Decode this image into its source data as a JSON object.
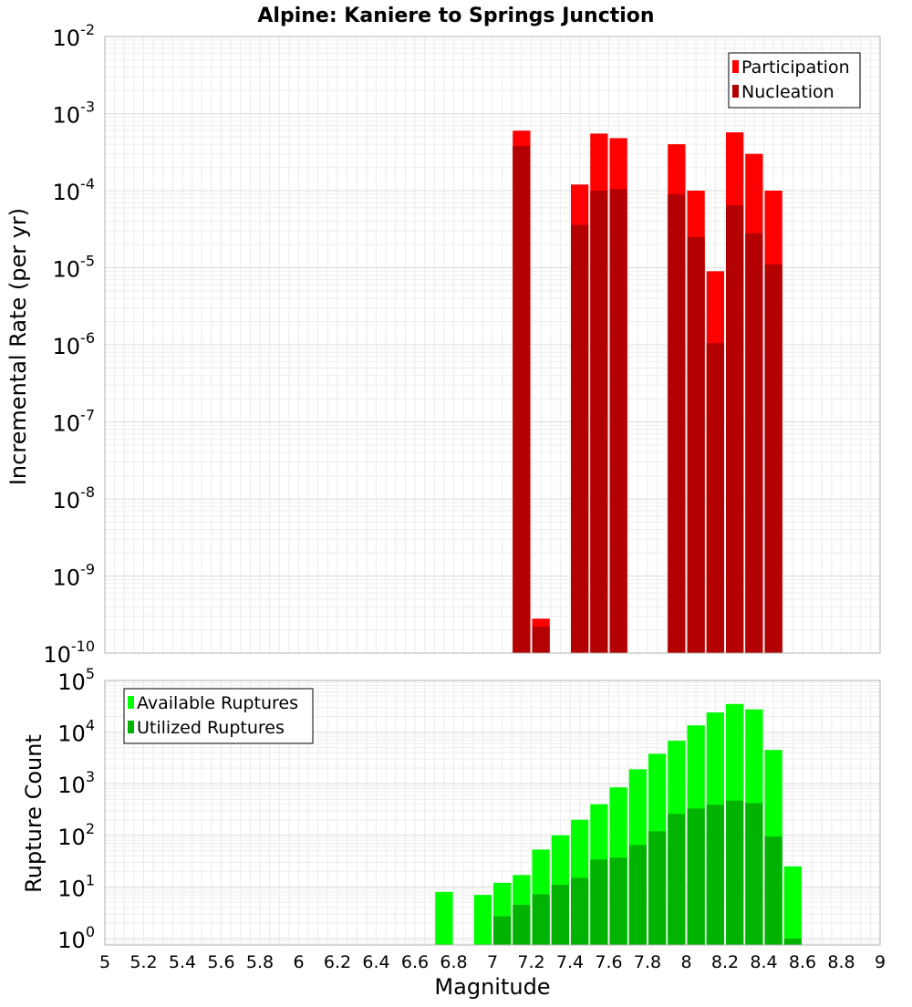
{
  "chart_data": [
    {
      "type": "bar",
      "title": "Alpine: Kaniere to Springs Junction",
      "xlabel": "",
      "ylabel": "Incremental Rate (per yr)",
      "yscale": "log",
      "xlim": [
        5,
        9
      ],
      "ylim": [
        1e-10,
        0.01
      ],
      "ytick_labels": [
        {
          "base": "10",
          "exp": "-10"
        },
        {
          "base": "10",
          "exp": "-9"
        },
        {
          "base": "10",
          "exp": "-8"
        },
        {
          "base": "10",
          "exp": "-7"
        },
        {
          "base": "10",
          "exp": "-6"
        },
        {
          "base": "10",
          "exp": "-5"
        },
        {
          "base": "10",
          "exp": "-4"
        },
        {
          "base": "10",
          "exp": "-3"
        },
        {
          "base": "10",
          "exp": "-2"
        }
      ],
      "grid": true,
      "legend_position": "top-right",
      "bar_width": 0.1,
      "series": [
        {
          "name": "Participation",
          "color": "#ff0000",
          "x": [
            7.15,
            7.25,
            7.45,
            7.55,
            7.65,
            7.95,
            8.05,
            8.15,
            8.25,
            8.35,
            8.45
          ],
          "values": [
            0.0006,
            2.8e-10,
            0.00012,
            0.00055,
            0.00048,
            0.0004,
            0.0001,
            9e-06,
            0.00057,
            0.0003,
            0.0001
          ]
        },
        {
          "name": "Nucleation",
          "color": "#b30000",
          "x": [
            7.15,
            7.25,
            7.45,
            7.55,
            7.65,
            7.95,
            8.05,
            8.15,
            8.25,
            8.35,
            8.45
          ],
          "values": [
            0.00038,
            2.2e-10,
            3.6e-05,
            0.0001,
            0.000105,
            9e-05,
            2.5e-05,
            1.05e-06,
            6.5e-05,
            2.8e-05,
            1.1e-05
          ]
        }
      ]
    },
    {
      "type": "bar",
      "title": "",
      "xlabel": "Magnitude",
      "ylabel": "Rupture Count",
      "yscale": "log",
      "xlim": [
        5,
        9
      ],
      "ylim": [
        0.75,
        100000
      ],
      "ytick_labels": [
        {
          "base": "10",
          "exp": "0"
        },
        {
          "base": "10",
          "exp": "1"
        },
        {
          "base": "10",
          "exp": "2"
        },
        {
          "base": "10",
          "exp": "3"
        },
        {
          "base": "10",
          "exp": "4"
        },
        {
          "base": "10",
          "exp": "5"
        }
      ],
      "xtick_labels": [
        "5",
        "5.2",
        "5.4",
        "5.6",
        "5.8",
        "6",
        "6.2",
        "6.4",
        "6.6",
        "6.8",
        "7",
        "7.2",
        "7.4",
        "7.6",
        "7.8",
        "8",
        "8.2",
        "8.4",
        "8.6",
        "8.8",
        "9"
      ],
      "grid": true,
      "legend_position": "top-left",
      "bar_width": 0.1,
      "series": [
        {
          "name": "Available Ruptures",
          "color": "#00ff00",
          "x": [
            6.75,
            6.95,
            7.05,
            7.15,
            7.25,
            7.35,
            7.45,
            7.55,
            7.65,
            7.75,
            7.85,
            7.95,
            8.05,
            8.15,
            8.25,
            8.35,
            8.45,
            8.55
          ],
          "values": [
            8,
            7,
            12,
            17,
            53,
            100,
            200,
            400,
            850,
            1900,
            3800,
            6800,
            13500,
            24000,
            35000,
            27500,
            4500,
            25
          ]
        },
        {
          "name": "Utilized Ruptures",
          "color": "#00b300",
          "x": [
            7.05,
            7.15,
            7.25,
            7.35,
            7.45,
            7.55,
            7.65,
            7.75,
            7.85,
            7.95,
            8.05,
            8.15,
            8.25,
            8.35,
            8.45,
            8.55
          ],
          "values": [
            2.7,
            4.5,
            7.2,
            11,
            15,
            34,
            37,
            65,
            120,
            260,
            330,
            390,
            470,
            420,
            95,
            1
          ]
        }
      ]
    }
  ]
}
